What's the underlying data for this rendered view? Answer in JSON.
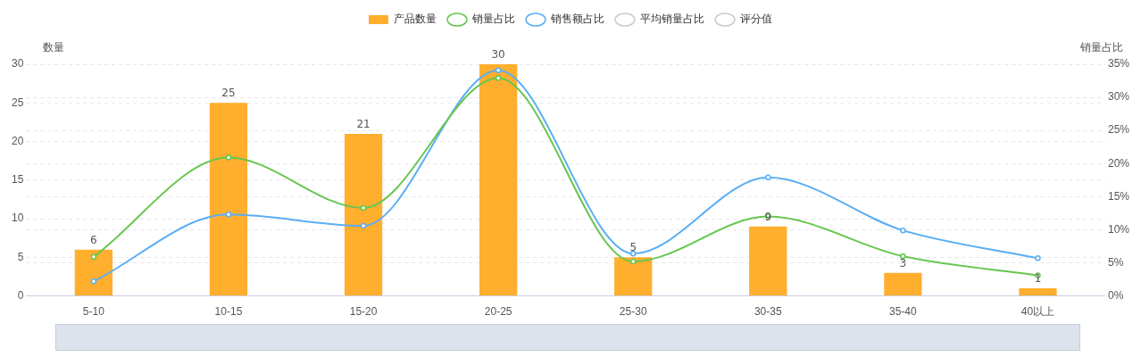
{
  "chart_data": {
    "type": "bar",
    "ylabel": "数量",
    "y2label": "销量占比",
    "categories": [
      "5-10",
      "10-15",
      "15-20",
      "20-25",
      "25-30",
      "30-35",
      "35-40",
      "40以上"
    ],
    "series": [
      {
        "name": "产品数量",
        "color": "#ffae2e",
        "values": [
          6,
          25,
          21,
          30,
          5,
          9,
          3,
          1
        ],
        "value_labels": [
          "6",
          "25",
          "21",
          "30",
          "5",
          "9",
          "3",
          "1"
        ]
      },
      {
        "name": "销量占比",
        "type": "line",
        "axis": "y2",
        "color": "#67c64f",
        "values": [
          5.9,
          20.9,
          13.3,
          32.9,
          5.2,
          12.0,
          6.0,
          3.1
        ]
      },
      {
        "name": "销售额占比",
        "type": "line",
        "axis": "y2",
        "color": "#5aaef5",
        "values": [
          2.2,
          12.3,
          10.6,
          34.1,
          6.4,
          17.9,
          9.9,
          5.7
        ]
      },
      {
        "name": "平均销量占比",
        "type": "line",
        "axis": "y2",
        "color": "#cccccc",
        "values": [
          null,
          null,
          null,
          null,
          null,
          null,
          null,
          null
        ]
      },
      {
        "name": "评分值",
        "type": "line",
        "axis": "y2",
        "color": "#cccccc",
        "values": [
          null,
          null,
          null,
          null,
          null,
          null,
          null,
          null
        ]
      }
    ],
    "ylim": [
      0,
      30
    ],
    "yticks": [
      0,
      5,
      10,
      15,
      20,
      25,
      30
    ],
    "y2lim": [
      0,
      35
    ],
    "y2ticks": [
      {
        "value": 0,
        "label": "0%"
      },
      {
        "value": 5,
        "label": "5%"
      },
      {
        "value": 10,
        "label": "10%"
      },
      {
        "value": 15,
        "label": "15%"
      },
      {
        "value": 20,
        "label": "20%"
      },
      {
        "value": 25,
        "label": "25%"
      },
      {
        "value": 30,
        "label": "30%"
      },
      {
        "value": 35,
        "label": "35%"
      }
    ],
    "grid": "y",
    "legend": "top",
    "marker": "circle",
    "line_style": "solid"
  }
}
